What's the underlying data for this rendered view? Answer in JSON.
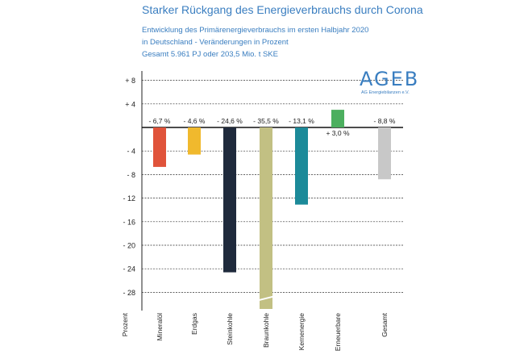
{
  "header": {
    "title": "Starker Rückgang des Energieverbrauchs durch Corona",
    "subtitle_line1": "Entwicklung des Primärenergieverbrauchs im ersten Halbjahr 2020",
    "subtitle_line2": "in Deutschland - Veränderungen in Prozent",
    "subtitle_line3": "Gesamt 5.961 PJ oder 203,5 Mio. t SKE"
  },
  "logo": {
    "text": "AGEB",
    "subtext": "AG Energiebilanzen e.V."
  },
  "colors": {
    "accent": "#3a7ec0",
    "grid": "#333333"
  },
  "chart_data": {
    "type": "bar",
    "title": "Starker Rückgang des Energieverbrauchs durch Corona",
    "xlabel": "Prozent",
    "ylabel": "",
    "ylim": [
      -30,
      9
    ],
    "grid": true,
    "yticks": [
      8,
      4,
      0,
      -4,
      -8,
      -12,
      -16,
      -20,
      -24,
      -28
    ],
    "ytick_labels": [
      "+ 8",
      "+ 4",
      "",
      "- 4",
      "- 8",
      "- 12",
      "- 16",
      "- 20",
      "- 24",
      "- 28"
    ],
    "categories": [
      "Mineralöl",
      "Erdgas",
      "Steinkohle",
      "Braunkohle",
      "Kernenergie",
      "Erneuerbare",
      "Gesamt"
    ],
    "values": [
      -6.7,
      -4.6,
      -24.6,
      -35.5,
      -13.1,
      3.0,
      -8.8
    ],
    "value_labels": [
      "- 6,7 %",
      "- 4,6 %",
      "- 24,6 %",
      "- 35,5 %",
      "- 13,1 %",
      "+ 3,0 %",
      "- 8,8 %"
    ],
    "bar_colors": [
      "#e0533a",
      "#f0b92d",
      "#1f2a3c",
      "#c2c083",
      "#1c8a99",
      "#4caf5f",
      "#c8c8c8"
    ],
    "broken_axis_categories": [
      "Braunkohle"
    ]
  }
}
